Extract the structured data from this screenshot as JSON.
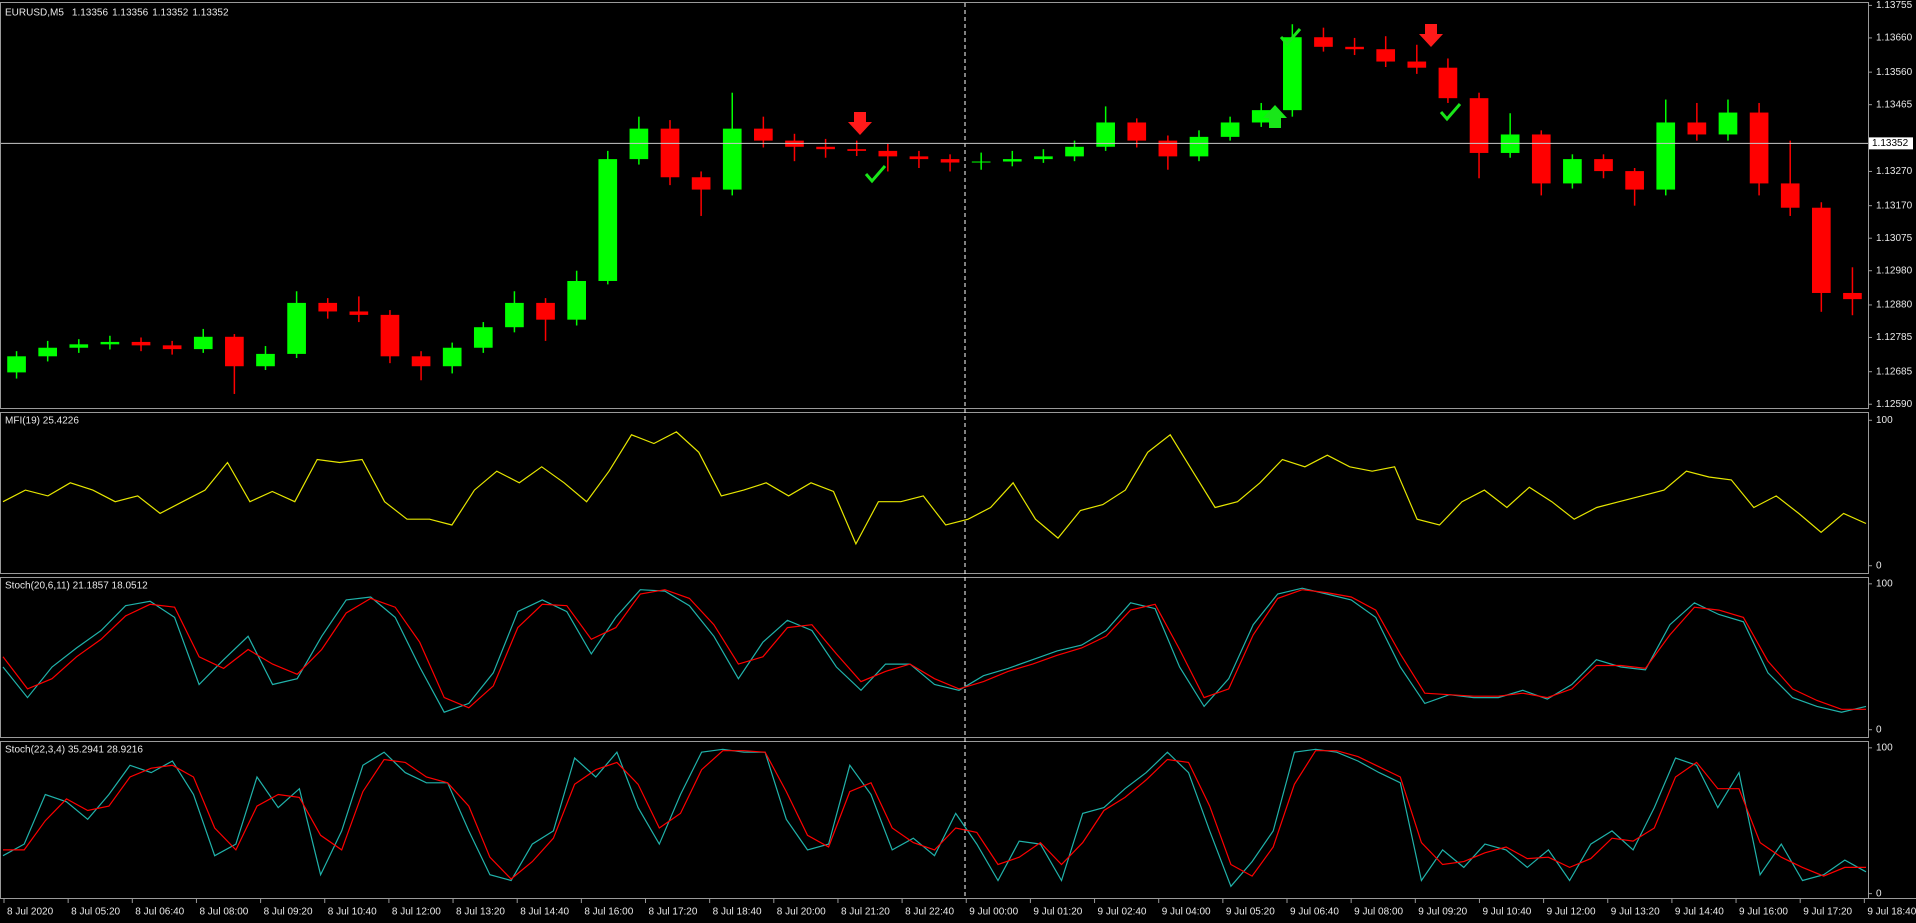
{
  "chart_data": [
    {
      "type": "candlestick",
      "title": "EURUSD,M5",
      "last_ohlc": [
        1.13356,
        1.13356,
        1.13352,
        1.13352
      ],
      "bid": 1.13352,
      "up_color": "#00ff00",
      "down_color": "#ff0000",
      "ylim": [
        1.12579,
        1.13762
      ],
      "yticks": [
        1.13755,
        {
          "value": 1.1366,
          "label": "1.13660"
        },
        {
          "value": 1.1356,
          "label": "1.13560"
        },
        1.13465,
        {
          "value": 1.1327,
          "label": "1.13270"
        },
        {
          "value": 1.1317,
          "label": "1.13170"
        },
        1.13075,
        {
          "value": 1.1298,
          "label": "1.12980"
        },
        {
          "value": 1.1288,
          "label": "1.12880"
        },
        1.12785,
        1.12685,
        {
          "value": 1.1259,
          "label": "1.12590"
        }
      ],
      "x_labels": [
        "8 Jul 2020",
        "8 Jul 05:20",
        "8 Jul 06:40",
        "8 Jul 08:00",
        "8 Jul 09:20",
        "8 Jul 10:40",
        "8 Jul 12:00",
        "8 Jul 13:20",
        "8 Jul 14:40",
        "8 Jul 16:00",
        "8 Jul 17:20",
        "8 Jul 18:40",
        "8 Jul 20:00",
        "8 Jul 21:20",
        "8 Jul 22:40",
        "9 Jul 00:00",
        "9 Jul 01:20",
        "9 Jul 02:40",
        "9 Jul 04:00",
        "9 Jul 05:20",
        "9 Jul 06:40",
        "9 Jul 08:00",
        "9 Jul 09:20",
        "9 Jul 10:40",
        "9 Jul 12:00",
        "9 Jul 13:20",
        "9 Jul 14:40",
        "9 Jul 16:00",
        "9 Jul 17:20",
        "9 Jul 18:40"
      ],
      "open": [
        1.12683,
        1.1273,
        1.12755,
        1.12765,
        1.12772,
        1.12762,
        1.12751,
        1.12787,
        1.12701,
        1.12737,
        1.12886,
        1.12861,
        1.12851,
        1.1273,
        1.12701,
        1.12755,
        1.12815,
        1.12886,
        1.12837,
        1.1295,
        1.13306,
        1.13395,
        1.13253,
        1.13217,
        1.13395,
        1.1336,
        1.13342,
        1.13335,
        1.1333,
        1.13314,
        1.13306,
        1.13296,
        1.13299,
        1.13306,
        1.13314,
        1.13342,
        1.13413,
        1.1336,
        1.13314,
        1.13371,
        1.13413,
        1.13449,
        1.13662,
        1.13634,
        1.13627,
        1.13591,
        1.13573,
        1.13484,
        1.13324,
        1.13378,
        1.13235,
        1.13306,
        1.13271,
        1.13217,
        1.13413,
        1.13378,
        1.13442,
        1.13235,
        1.13164,
        1.12915
      ],
      "high": [
        1.12745,
        1.12775,
        1.1278,
        1.1279,
        1.12785,
        1.12775,
        1.1281,
        1.12795,
        1.1276,
        1.1292,
        1.129,
        1.12905,
        1.12865,
        1.12745,
        1.1277,
        1.1283,
        1.1292,
        1.129,
        1.1298,
        1.1333,
        1.1343,
        1.1342,
        1.1327,
        1.135,
        1.1343,
        1.1338,
        1.13365,
        1.1336,
        1.1335,
        1.1333,
        1.1332,
        1.13325,
        1.1333,
        1.13335,
        1.1336,
        1.1346,
        1.13425,
        1.13375,
        1.1339,
        1.1343,
        1.1347,
        1.137,
        1.1369,
        1.1366,
        1.13665,
        1.1364,
        1.136,
        1.135,
        1.1344,
        1.1339,
        1.1332,
        1.1332,
        1.1328,
        1.1348,
        1.1347,
        1.1348,
        1.1347,
        1.1336,
        1.1318,
        1.1299
      ],
      "low": [
        1.12665,
        1.12715,
        1.1274,
        1.1275,
        1.12745,
        1.12735,
        1.1274,
        1.1262,
        1.1269,
        1.12725,
        1.1284,
        1.1283,
        1.1271,
        1.1266,
        1.1268,
        1.1274,
        1.128,
        1.12775,
        1.1282,
        1.1294,
        1.1329,
        1.1323,
        1.1314,
        1.132,
        1.1334,
        1.133,
        1.1331,
        1.13315,
        1.1327,
        1.1328,
        1.1327,
        1.13275,
        1.13285,
        1.13295,
        1.133,
        1.1333,
        1.1334,
        1.13275,
        1.133,
        1.1336,
        1.134,
        1.1343,
        1.1362,
        1.1361,
        1.13575,
        1.13555,
        1.1347,
        1.1325,
        1.1331,
        1.132,
        1.1322,
        1.1325,
        1.1317,
        1.132,
        1.1336,
        1.1336,
        1.132,
        1.1314,
        1.1286,
        1.1285
      ],
      "close": [
        1.1273,
        1.12755,
        1.12765,
        1.12772,
        1.12762,
        1.12751,
        1.12787,
        1.12701,
        1.12737,
        1.12886,
        1.12861,
        1.12851,
        1.1273,
        1.12701,
        1.12755,
        1.12815,
        1.12886,
        1.12837,
        1.1295,
        1.13306,
        1.13395,
        1.13253,
        1.13217,
        1.13395,
        1.1336,
        1.13342,
        1.13335,
        1.1333,
        1.13314,
        1.13306,
        1.13296,
        1.13299,
        1.13306,
        1.13314,
        1.13342,
        1.13413,
        1.1336,
        1.13314,
        1.13371,
        1.13413,
        1.13449,
        1.13662,
        1.13634,
        1.13627,
        1.13591,
        1.13573,
        1.13484,
        1.13324,
        1.13378,
        1.13235,
        1.13306,
        1.13271,
        1.13217,
        1.13413,
        1.13378,
        1.13442,
        1.13235,
        1.13164,
        1.12915,
        1.12897
      ]
    },
    {
      "type": "line",
      "title": "MFI(19) 25.4226",
      "ylim": [
        -5,
        105
      ],
      "yticks": [
        100,
        0
      ],
      "series": [
        {
          "color": "#e6e600",
          "values": [
            44,
            52,
            48,
            57,
            52,
            44,
            48,
            36,
            44,
            52,
            71,
            44,
            51,
            44,
            73,
            71,
            73,
            44,
            32,
            32,
            28,
            52,
            65,
            57,
            68,
            57,
            44,
            65,
            90,
            84,
            92,
            78,
            48,
            52,
            57,
            48,
            57,
            51,
            15,
            44,
            44,
            48,
            28,
            32,
            40,
            57,
            32,
            19,
            38,
            42,
            52,
            78,
            90,
            65,
            40,
            44,
            57,
            73,
            68,
            76,
            68,
            65,
            68,
            32,
            28,
            44,
            52,
            40,
            54,
            44,
            32,
            40,
            44,
            48,
            52,
            65,
            61,
            59,
            40,
            48,
            36,
            23,
            36,
            29
          ]
        }
      ]
    },
    {
      "type": "line",
      "title": "Stoch(20,6,11) 21.1857 18.0512",
      "ylim": [
        -5,
        104
      ],
      "yticks": [
        100,
        0
      ],
      "series": [
        {
          "color": "#20b2aa",
          "values": [
            43,
            22,
            43,
            56,
            68,
            85,
            88,
            77,
            31,
            48,
            64,
            31,
            35,
            64,
            89,
            91,
            77,
            43,
            12,
            18,
            39,
            81,
            89,
            81,
            52,
            77,
            96,
            95,
            85,
            64,
            35,
            60,
            75,
            68,
            43,
            27,
            45,
            45,
            31,
            27,
            37,
            42,
            48,
            54,
            58,
            68,
            87,
            83,
            43,
            16,
            35,
            72,
            93,
            97,
            93,
            89,
            77,
            43,
            18,
            24,
            22,
            22,
            27,
            21,
            31,
            48,
            43,
            41,
            72,
            87,
            79,
            74,
            39,
            22,
            16,
            12,
            16
          ]
        },
        {
          "color": "#ff0000",
          "values": [
            50,
            28,
            35,
            50,
            62,
            78,
            86,
            84,
            50,
            42,
            55,
            45,
            38,
            55,
            80,
            90,
            84,
            60,
            22,
            15,
            30,
            70,
            86,
            85,
            62,
            70,
            93,
            96,
            90,
            72,
            45,
            50,
            70,
            72,
            52,
            33,
            40,
            45,
            35,
            28,
            33,
            40,
            45,
            51,
            56,
            64,
            82,
            86,
            55,
            22,
            28,
            65,
            90,
            96,
            94,
            91,
            82,
            52,
            25,
            24,
            23,
            23,
            25,
            22,
            28,
            44,
            44,
            42,
            65,
            84,
            82,
            77,
            47,
            28,
            20,
            14,
            14
          ]
        }
      ]
    },
    {
      "type": "line",
      "title": "Stoch(22,3,4) 35.2941 28.9216",
      "ylim": [
        -3,
        104
      ],
      "yticks": [
        100,
        0
      ],
      "series": [
        {
          "color": "#20b2aa",
          "values": [
            26,
            34,
            68,
            63,
            51,
            68,
            88,
            83,
            91,
            68,
            26,
            34,
            80,
            59,
            72,
            13,
            43,
            88,
            97,
            83,
            76,
            76,
            43,
            13,
            9,
            34,
            43,
            93,
            80,
            97,
            59,
            34,
            68,
            97,
            99,
            97,
            97,
            51,
            30,
            34,
            88,
            68,
            30,
            38,
            26,
            55,
            34,
            9,
            36,
            34,
            9,
            55,
            59,
            72,
            83,
            97,
            83,
            43,
            5,
            22,
            43,
            97,
            99,
            97,
            91,
            83,
            76,
            9,
            30,
            18,
            34,
            30,
            18,
            30,
            9,
            34,
            43,
            30,
            59,
            93,
            88,
            59,
            83,
            13,
            34,
            9,
            13,
            23,
            15
          ]
        },
        {
          "color": "#ff0000",
          "values": [
            30,
            30,
            50,
            65,
            57,
            60,
            80,
            86,
            88,
            80,
            45,
            30,
            60,
            68,
            66,
            40,
            30,
            70,
            92,
            90,
            80,
            76,
            60,
            25,
            10,
            22,
            38,
            75,
            85,
            90,
            75,
            45,
            55,
            85,
            98,
            98,
            97,
            70,
            40,
            32,
            70,
            76,
            45,
            35,
            30,
            45,
            42,
            20,
            25,
            35,
            20,
            35,
            57,
            66,
            78,
            92,
            90,
            60,
            20,
            12,
            32,
            75,
            98,
            98,
            94,
            87,
            80,
            35,
            20,
            22,
            28,
            32,
            24,
            25,
            18,
            24,
            38,
            36,
            45,
            80,
            90,
            72,
            72,
            35,
            25,
            18,
            12,
            18,
            18
          ]
        }
      ]
    }
  ]
}
